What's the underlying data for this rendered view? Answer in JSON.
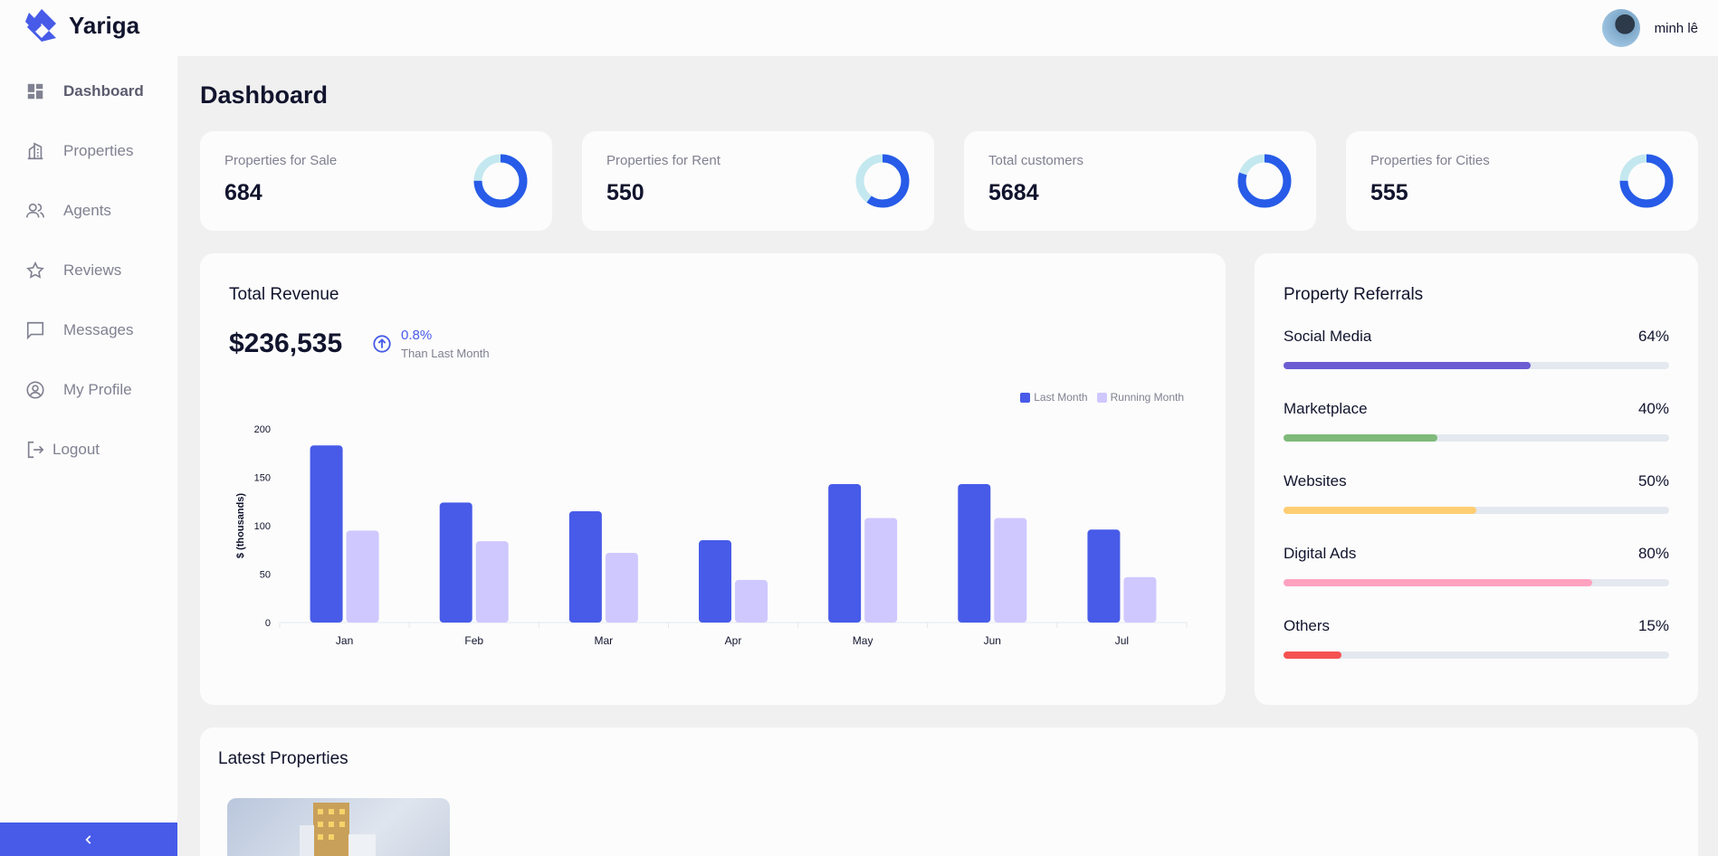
{
  "app": {
    "name": "Yariga"
  },
  "sidebar": {
    "items": [
      {
        "label": "Dashboard",
        "icon": "dashboard-icon",
        "active": true
      },
      {
        "label": "Properties",
        "icon": "building-icon"
      },
      {
        "label": "Agents",
        "icon": "people-icon"
      },
      {
        "label": "Reviews",
        "icon": "star-icon"
      },
      {
        "label": "Messages",
        "icon": "chat-icon"
      },
      {
        "label": "My Profile",
        "icon": "account-circle-icon"
      },
      {
        "label": "Logout",
        "icon": "logout-icon"
      }
    ],
    "collapse_icon": "chevron-left-icon"
  },
  "header": {
    "user_name": "minh lê"
  },
  "page": {
    "title": "Dashboard"
  },
  "stats": [
    {
      "label": "Properties for Sale",
      "value": "684",
      "fraction": 0.75
    },
    {
      "label": "Properties for Rent",
      "value": "550",
      "fraction": 0.6
    },
    {
      "label": "Total customers",
      "value": "5684",
      "fraction": 0.8
    },
    {
      "label": "Properties for Cities",
      "value": "555",
      "fraction": 0.75
    }
  ],
  "revenue": {
    "title": "Total Revenue",
    "amount": "$236,535",
    "change": "0.8%",
    "change_sub": "Than Last Month"
  },
  "chart_data": {
    "type": "bar",
    "categories": [
      "Jan",
      "Feb",
      "Mar",
      "Apr",
      "May",
      "Jun",
      "Jul"
    ],
    "series": [
      {
        "name": "Last Month",
        "color": "#475be8",
        "values": [
          183,
          124,
          115,
          85,
          143,
          143,
          96
        ]
      },
      {
        "name": "Running Month",
        "color": "#cfc8ff",
        "values": [
          95,
          84,
          72,
          44,
          108,
          108,
          47
        ]
      }
    ],
    "title": "",
    "xlabel": "",
    "ylabel": "$ (thousands)",
    "ylim": [
      0,
      200
    ],
    "yticks": [
      0,
      50,
      100,
      150,
      200
    ],
    "legend": "top-right",
    "grid": false
  },
  "referrals": {
    "title": "Property Referrals",
    "items": [
      {
        "label": "Social Media",
        "percent": 64,
        "percent_label": "64%",
        "color": "#6c5dd3"
      },
      {
        "label": "Marketplace",
        "percent": 40,
        "percent_label": "40%",
        "color": "#7fba7a"
      },
      {
        "label": "Websites",
        "percent": 50,
        "percent_label": "50%",
        "color": "#ffce73"
      },
      {
        "label": "Digital Ads",
        "percent": 80,
        "percent_label": "80%",
        "color": "#ffa2c0"
      },
      {
        "label": "Others",
        "percent": 15,
        "percent_label": "15%",
        "color": "#f45252"
      }
    ]
  },
  "latest": {
    "title": "Latest Properties"
  }
}
